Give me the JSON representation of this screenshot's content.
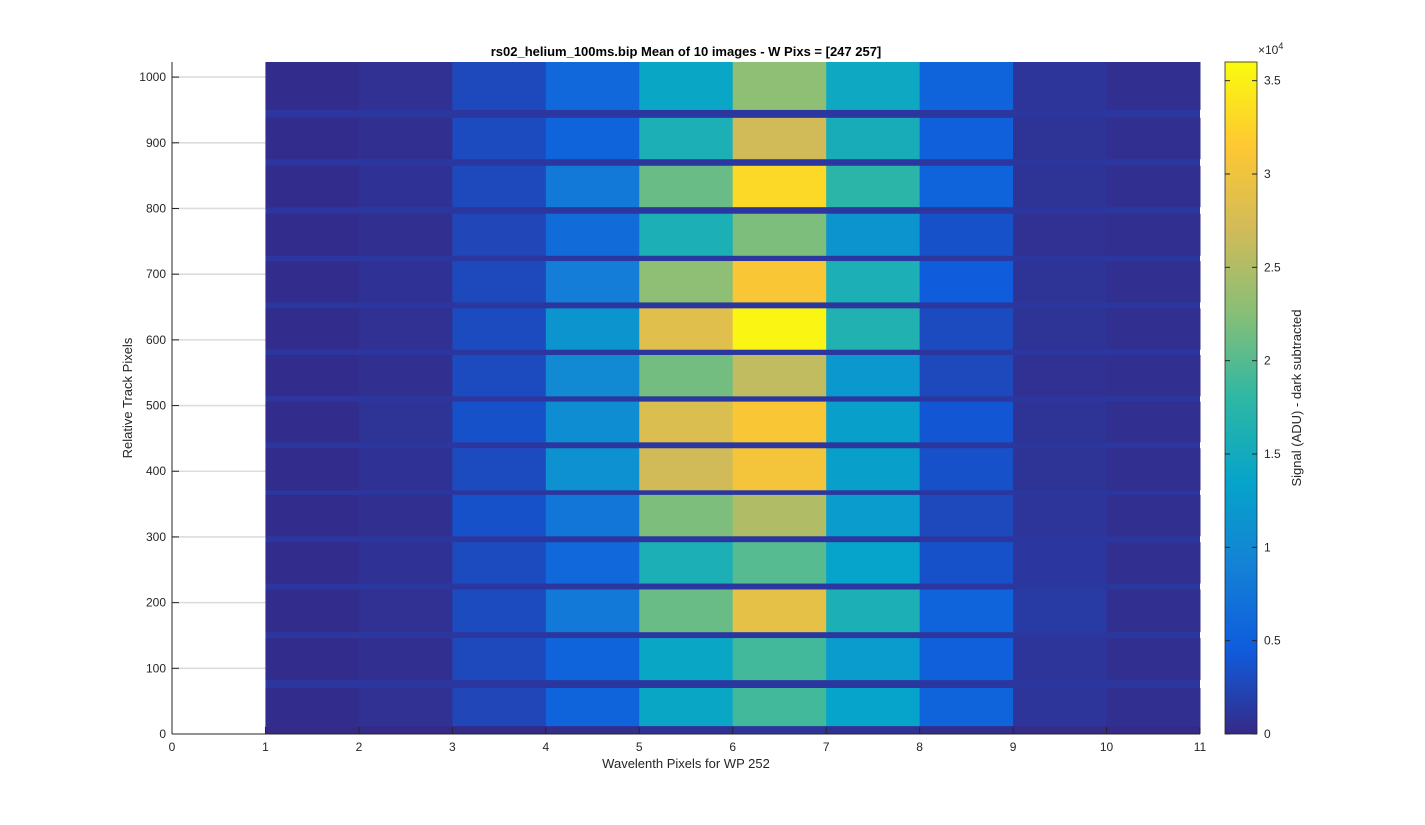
{
  "chart_data": {
    "type": "heatmap",
    "title": "rs02_helium_100ms.bip  Mean of 10 images - W Pixs = [247  257]",
    "xlabel": "Wavelenth Pixels for WP 252",
    "ylabel": "Relative Track Pixels",
    "xlim": [
      0,
      11
    ],
    "ylim": [
      0,
      1023
    ],
    "x_ticks": [
      0,
      1,
      2,
      3,
      4,
      5,
      6,
      7,
      8,
      9,
      10,
      11
    ],
    "y_ticks": [
      0,
      100,
      200,
      300,
      400,
      500,
      600,
      700,
      800,
      900,
      1000
    ],
    "y_grid": true,
    "colorbar": {
      "label": "Signal (ADU) - dark subtracted",
      "exponent_label": "×10",
      "exponent_power": "4",
      "ticks": [
        0,
        0.5,
        1,
        1.5,
        2,
        2.5,
        3,
        3.5
      ],
      "range": [
        0,
        3.6
      ],
      "colormap": "parula"
    },
    "x_columns": [
      {
        "x0": 1,
        "x1": 2,
        "profile": [
          0.03,
          0.03,
          0.03,
          0.03,
          0.03,
          0.03,
          0.03,
          0.03,
          0.03,
          0.03,
          0.03,
          0.03,
          0.03,
          0.03
        ]
      },
      {
        "x0": 2,
        "x1": 3,
        "profile": [
          0.06,
          0.05,
          0.06,
          0.07,
          0.05,
          0.07,
          0.08,
          0.05,
          0.06,
          0.07,
          0.05,
          0.07,
          0.05,
          0.06
        ]
      },
      {
        "x0": 3,
        "x1": 4,
        "profile": [
          0.25,
          0.28,
          0.3,
          0.3,
          0.35,
          0.3,
          0.35,
          0.3,
          0.3,
          0.28,
          0.25,
          0.28,
          0.3,
          0.28
        ]
      },
      {
        "x0": 4,
        "x1": 5,
        "profile": [
          0.55,
          0.55,
          0.8,
          0.6,
          0.75,
          1.1,
          1.05,
          1.0,
          1.15,
          0.85,
          0.65,
          0.8,
          0.55,
          0.6
        ]
      },
      {
        "x0": 5,
        "x1": 6,
        "profile": [
          1.4,
          1.4,
          2.1,
          1.6,
          2.2,
          2.7,
          2.8,
          2.15,
          2.85,
          2.3,
          1.6,
          2.1,
          1.6,
          1.4
        ]
      },
      {
        "x0": 6,
        "x1": 7,
        "profile": [
          1.9,
          1.9,
          2.9,
          2.0,
          2.5,
          3.05,
          3.1,
          2.6,
          3.55,
          3.1,
          2.2,
          3.3,
          2.7,
          2.3
        ]
      },
      {
        "x0": 7,
        "x1": 8,
        "profile": [
          1.35,
          1.25,
          1.6,
          1.35,
          1.25,
          1.3,
          1.3,
          1.2,
          1.65,
          1.6,
          1.15,
          1.75,
          1.55,
          1.45
        ]
      },
      {
        "x0": 8,
        "x1": 9,
        "profile": [
          0.55,
          0.5,
          0.55,
          0.35,
          0.28,
          0.35,
          0.4,
          0.28,
          0.3,
          0.45,
          0.35,
          0.55,
          0.5,
          0.55
        ]
      },
      {
        "x0": 9,
        "x1": 10,
        "profile": [
          0.1,
          0.1,
          0.15,
          0.12,
          0.1,
          0.08,
          0.08,
          0.06,
          0.08,
          0.08,
          0.06,
          0.08,
          0.08,
          0.1
        ]
      },
      {
        "x0": 10,
        "x1": 11,
        "profile": [
          0.05,
          0.05,
          0.05,
          0.05,
          0.05,
          0.05,
          0.05,
          0.05,
          0.05,
          0.05,
          0.05,
          0.05,
          0.05,
          0.05
        ]
      }
    ],
    "track_bands": [
      {
        "y0": 0,
        "y1": 12
      },
      {
        "y0": 12,
        "y1": 70
      },
      {
        "y0": 82,
        "y1": 146
      },
      {
        "y0": 155,
        "y1": 220
      },
      {
        "y0": 229,
        "y1": 292
      },
      {
        "y0": 301,
        "y1": 364
      },
      {
        "y0": 371,
        "y1": 435
      },
      {
        "y0": 444,
        "y1": 506
      },
      {
        "y0": 514,
        "y1": 577
      },
      {
        "y0": 585,
        "y1": 648
      },
      {
        "y0": 657,
        "y1": 720
      },
      {
        "y0": 728,
        "y1": 792
      },
      {
        "y0": 802,
        "y1": 865
      },
      {
        "y0": 875,
        "y1": 938
      },
      {
        "y0": 950,
        "y1": 1023
      }
    ],
    "band_profile_index": [
      0,
      0,
      1,
      2,
      3,
      4,
      5,
      6,
      7,
      8,
      9,
      10,
      11,
      12,
      13
    ],
    "band_scale": [
      0.05,
      1,
      1,
      1,
      1,
      1,
      1,
      1,
      1,
      1,
      1,
      1,
      1,
      1,
      1
    ],
    "background_value": 0.12
  }
}
